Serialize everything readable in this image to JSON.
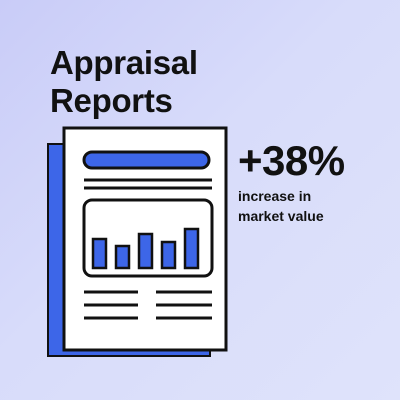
{
  "heading": {
    "line1": "Appraisal",
    "line2": "Reports"
  },
  "stat": {
    "value": "+38%",
    "caption_line1": "increase in",
    "caption_line2": "market value"
  },
  "illustration": {
    "icon": "report-document-icon",
    "bar_levels": [
      0.52,
      0.4,
      0.62,
      0.48,
      0.7
    ],
    "colors": {
      "accent": "#3d66e8",
      "outline": "#111111",
      "paper": "#ffffff",
      "background": "#d4d8fa"
    }
  }
}
